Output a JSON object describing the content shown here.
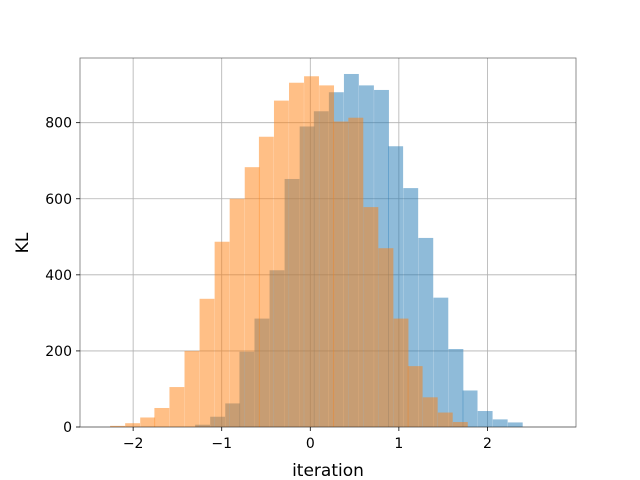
{
  "chart_data": {
    "type": "bar",
    "xlabel": "iteration",
    "ylabel": "KL",
    "xlim": [
      -2.6,
      3.0
    ],
    "ylim": [
      0,
      970
    ],
    "xticks": [
      -2,
      -1,
      0,
      1,
      2
    ],
    "yticks": [
      0,
      200,
      400,
      600,
      800
    ],
    "xtick_labels": [
      "−2",
      "−1",
      "0",
      "1",
      "2"
    ],
    "ytick_labels": [
      "0",
      "200",
      "400",
      "600",
      "800"
    ],
    "grid": true,
    "legend": "none",
    "bin_width": 0.168,
    "series": [
      {
        "color": "#1f77b4",
        "opacity": 0.5,
        "bin_starts": [
          -1.3,
          -1.13,
          -0.96,
          -0.8,
          -0.63,
          -0.46,
          -0.29,
          -0.12,
          0.04,
          0.21,
          0.38,
          0.55,
          0.72,
          0.88,
          1.05,
          1.22,
          1.39,
          1.56,
          1.72,
          1.89,
          2.06,
          2.23
        ],
        "values": [
          6,
          27,
          62,
          198,
          285,
          412,
          652,
          790,
          830,
          880,
          928,
          898,
          886,
          738,
          628,
          497,
          340,
          205,
          96,
          42,
          20,
          12
        ]
      },
      {
        "color": "#ff7f0e",
        "opacity": 0.5,
        "bin_starts": [
          -2.26,
          -2.09,
          -1.92,
          -1.76,
          -1.59,
          -1.42,
          -1.25,
          -1.08,
          -0.91,
          -0.74,
          -0.58,
          -0.41,
          -0.24,
          -0.07,
          0.1,
          0.26,
          0.43,
          0.6,
          0.77,
          0.94,
          1.1,
          1.27,
          1.44,
          1.61
        ],
        "values": [
          3,
          10,
          25,
          50,
          105,
          200,
          337,
          487,
          600,
          683,
          763,
          858,
          905,
          922,
          898,
          803,
          813,
          578,
          470,
          285,
          160,
          78,
          38,
          13
        ]
      }
    ]
  }
}
